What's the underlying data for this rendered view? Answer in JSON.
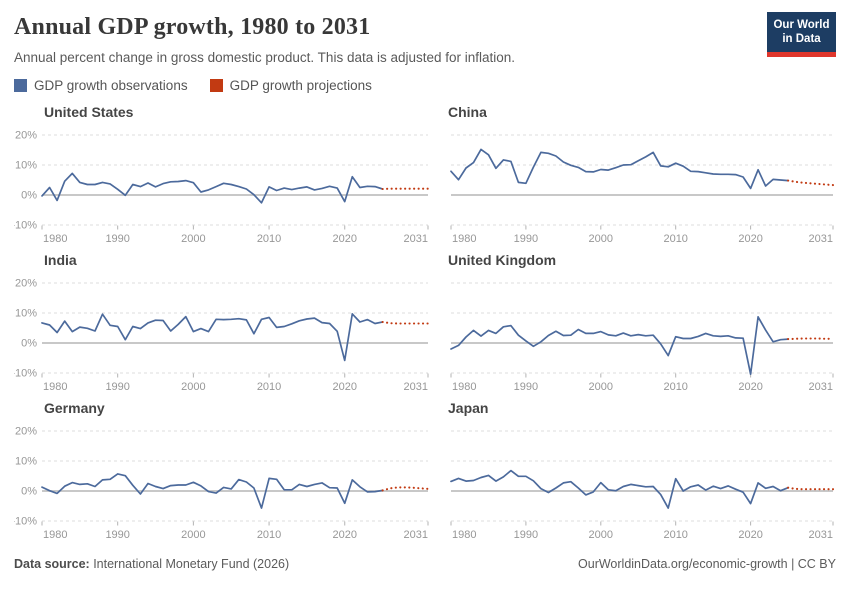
{
  "header": {
    "title": "Annual GDP growth, 1980 to 2031",
    "subtitle": "Annual percent change in gross domestic product. This data is adjusted for inflation.",
    "logo_line1": "Our World",
    "logo_line2": "in Data"
  },
  "legend": {
    "observations_label": "GDP growth observations",
    "projections_label": "GDP growth projections"
  },
  "colors": {
    "observations": "#4C6A9C",
    "projections": "#C23A12",
    "logo_bg": "#1D3D63",
    "logo_accent": "#E0362C",
    "gridline": "#DCDCDC",
    "zero_line": "#C0C0C0",
    "tick_label": "#979797"
  },
  "axes": {
    "y_ticks": [
      "20%",
      "10%",
      "0%",
      "-10%"
    ],
    "y_tick_values": [
      20,
      10,
      0,
      -10
    ],
    "x_ticks": [
      1980,
      1990,
      2000,
      2010,
      2020,
      2031
    ]
  },
  "chart_data": [
    {
      "type": "line",
      "title": "United States",
      "x_start": 1980,
      "ylim": [
        -10,
        20
      ],
      "observations": [
        -0.3,
        2.5,
        -1.8,
        4.6,
        7.2,
        4.2,
        3.5,
        3.5,
        4.2,
        3.7,
        1.9,
        -0.1,
        3.5,
        2.8,
        4.0,
        2.7,
        3.8,
        4.4,
        4.5,
        4.8,
        4.1,
        1.0,
        1.7,
        2.8,
        3.9,
        3.5,
        2.8,
        2.0,
        0.1,
        -2.6,
        2.7,
        1.5,
        2.3,
        1.8,
        2.3,
        2.7,
        1.7,
        2.2,
        2.9,
        2.3,
        -2.2,
        6.1,
        2.5,
        2.9,
        2.8,
        2.0
      ],
      "projections_start": 2025,
      "projections": [
        2.0,
        2.1,
        2.1,
        2.1,
        2.1,
        2.1,
        2.1
      ]
    },
    {
      "type": "line",
      "title": "China",
      "x_start": 1980,
      "ylim": [
        -10,
        20
      ],
      "observations": [
        7.9,
        5.1,
        9.0,
        10.8,
        15.2,
        13.4,
        8.9,
        11.7,
        11.2,
        4.2,
        3.9,
        9.3,
        14.2,
        13.9,
        13.0,
        11.0,
        9.9,
        9.2,
        7.8,
        7.7,
        8.5,
        8.3,
        9.1,
        10.0,
        10.1,
        11.4,
        12.7,
        14.2,
        9.7,
        9.4,
        10.6,
        9.6,
        7.9,
        7.8,
        7.4,
        7.0,
        6.9,
        6.9,
        6.8,
        6.0,
        2.2,
        8.4,
        3.0,
        5.2,
        5.0,
        4.8
      ],
      "projections_start": 2025,
      "projections": [
        4.8,
        4.4,
        4.1,
        3.9,
        3.7,
        3.5,
        3.3
      ]
    },
    {
      "type": "line",
      "title": "India",
      "x_start": 1980,
      "ylim": [
        -10,
        20
      ],
      "observations": [
        6.7,
        6.0,
        3.5,
        7.3,
        3.8,
        5.3,
        4.9,
        4.0,
        9.6,
        5.9,
        5.5,
        1.1,
        5.5,
        4.8,
        6.7,
        7.6,
        7.5,
        4.0,
        6.2,
        8.8,
        3.8,
        4.8,
        3.8,
        7.9,
        7.8,
        7.9,
        8.1,
        7.7,
        3.1,
        7.9,
        8.5,
        5.2,
        5.5,
        6.4,
        7.4,
        8.0,
        8.3,
        6.8,
        6.5,
        3.9,
        -5.8,
        9.7,
        7.0,
        7.8,
        6.5,
        7.0
      ],
      "projections_start": 2025,
      "projections": [
        7.0,
        6.6,
        6.5,
        6.5,
        6.5,
        6.5,
        6.5
      ]
    },
    {
      "type": "line",
      "title": "United Kingdom",
      "x_start": 1980,
      "ylim": [
        -10,
        20
      ],
      "observations": [
        -2.0,
        -0.8,
        2.0,
        4.2,
        2.3,
        4.2,
        3.2,
        5.4,
        5.8,
        2.6,
        0.7,
        -1.1,
        0.4,
        2.5,
        3.9,
        2.5,
        2.6,
        4.5,
        3.2,
        3.2,
        3.8,
        2.7,
        2.4,
        3.3,
        2.4,
        2.8,
        2.4,
        2.6,
        -0.3,
        -4.2,
        2.1,
        1.5,
        1.5,
        2.2,
        3.2,
        2.4,
        2.2,
        2.4,
        1.7,
        1.6,
        -10.4,
        8.7,
        4.3,
        0.4,
        1.1,
        1.3
      ],
      "projections_start": 2025,
      "projections": [
        1.3,
        1.4,
        1.5,
        1.5,
        1.5,
        1.4,
        1.4
      ]
    },
    {
      "type": "line",
      "title": "Germany",
      "x_start": 1980,
      "ylim": [
        -10,
        20
      ],
      "observations": [
        1.3,
        0.1,
        -0.8,
        1.6,
        2.8,
        2.2,
        2.4,
        1.5,
        3.7,
        3.9,
        5.7,
        5.1,
        1.9,
        -1.0,
        2.5,
        1.5,
        0.8,
        1.8,
        2.0,
        2.0,
        2.9,
        1.7,
        -0.2,
        -0.7,
        1.2,
        0.7,
        3.8,
        3.0,
        1.0,
        -5.7,
        4.2,
        3.9,
        0.4,
        0.4,
        2.2,
        1.5,
        2.2,
        2.7,
        1.1,
        1.0,
        -4.1,
        3.7,
        1.4,
        -0.3,
        -0.2,
        0.2
      ],
      "projections_start": 2025,
      "projections": [
        0.2,
        0.9,
        1.2,
        1.2,
        1.1,
        0.9,
        0.7
      ]
    },
    {
      "type": "line",
      "title": "Japan",
      "x_start": 1980,
      "ylim": [
        -10,
        20
      ],
      "observations": [
        3.2,
        4.2,
        3.3,
        3.5,
        4.5,
        5.2,
        3.3,
        4.7,
        6.8,
        4.9,
        4.9,
        3.4,
        0.8,
        -0.5,
        1.0,
        2.7,
        3.1,
        1.0,
        -1.3,
        -0.3,
        2.8,
        0.4,
        0.1,
        1.5,
        2.2,
        1.8,
        1.4,
        1.5,
        -1.2,
        -5.7,
        4.1,
        0.0,
        1.4,
        2.0,
        0.3,
        1.6,
        0.8,
        1.7,
        0.6,
        -0.4,
        -4.2,
        2.7,
        0.9,
        1.5,
        0.1,
        1.1
      ],
      "projections_start": 2025,
      "projections": [
        1.1,
        0.7,
        0.6,
        0.6,
        0.6,
        0.6,
        0.6
      ]
    }
  ],
  "footer": {
    "source_label": "Data source:",
    "source_value": " International Monetary Fund (2026)",
    "right_text": "OurWorldinData.org/economic-growth | CC BY"
  }
}
